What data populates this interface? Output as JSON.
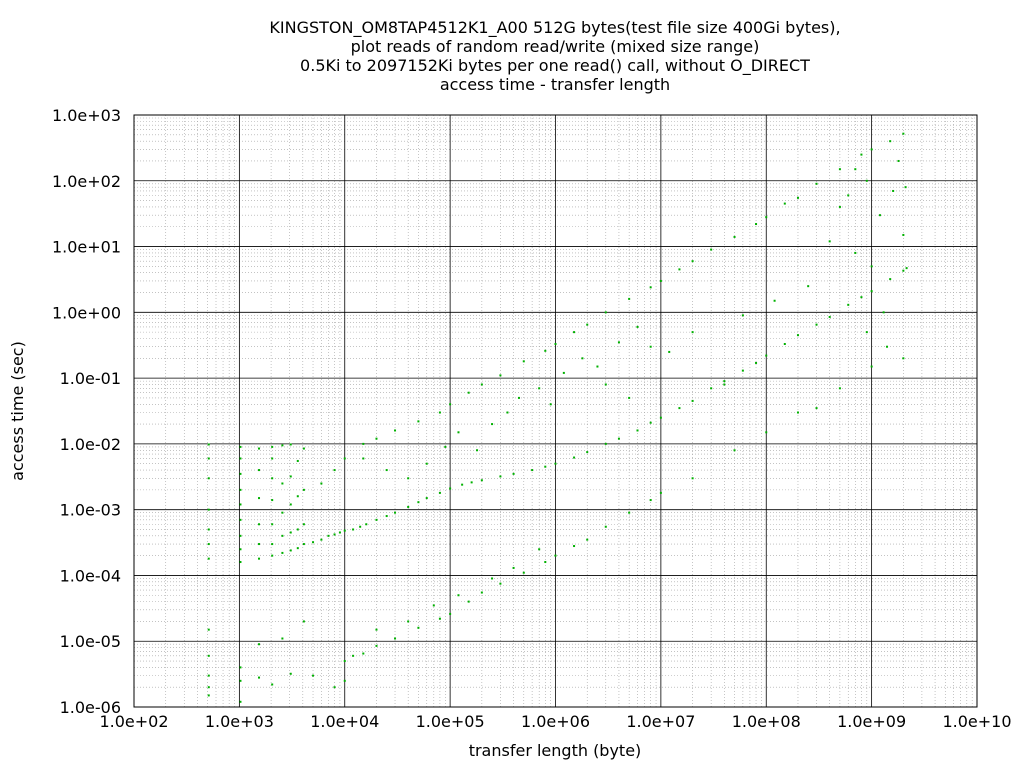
{
  "chart_data": {
    "type": "scatter",
    "title_lines": [
      "KINGSTON_OM8TAP4512K1_A00 512G bytes(test file size 400Gi bytes),",
      "plot reads of random read/write (mixed size range)",
      "0.5Ki to 2097152Ki bytes per one read() call, without O_DIRECT",
      "access time - transfer length"
    ],
    "xlabel": "transfer length (byte)",
    "ylabel": "access time (sec)",
    "xscale": "log",
    "yscale": "log",
    "xlim": [
      100,
      10000000000
    ],
    "ylim": [
      1e-06,
      1000
    ],
    "grid": true,
    "x_tick_labels": [
      "1.0e+02",
      "1.0e+03",
      "1.0e+04",
      "1.0e+05",
      "1.0e+06",
      "1.0e+07",
      "1.0e+08",
      "1.0e+09",
      "1.0e+10"
    ],
    "y_tick_labels": [
      "1.0e-06",
      "1.0e-05",
      "1.0e-04",
      "1.0e-03",
      "1.0e-02",
      "1.0e-01",
      "1.0e+00",
      "1.0e+01",
      "1.0e+02",
      "1.0e+03"
    ],
    "point_color": "#00b000",
    "series": [
      {
        "points": [
          [
            512,
            0.00018
          ],
          [
            512,
            0.0003
          ],
          [
            512,
            0.0005
          ],
          [
            512,
            0.001
          ],
          [
            512,
            0.003
          ],
          [
            512,
            0.006
          ],
          [
            512,
            0.0098
          ],
          [
            512,
            3e-06
          ],
          [
            512,
            2e-06
          ],
          [
            512,
            1.5e-06
          ],
          [
            512,
            6e-06
          ],
          [
            512,
            1.5e-05
          ],
          [
            1024,
            0.00016
          ],
          [
            1024,
            0.00025
          ],
          [
            1024,
            0.0004
          ],
          [
            1024,
            0.0007
          ],
          [
            1024,
            0.0012
          ],
          [
            1024,
            0.002
          ],
          [
            1024,
            0.0035
          ],
          [
            1024,
            0.006
          ],
          [
            1024,
            0.009
          ],
          [
            1024,
            4e-06
          ],
          [
            1024,
            2.5e-06
          ],
          [
            1024,
            1.2e-06
          ],
          [
            1536,
            0.00018
          ],
          [
            1536,
            0.0003
          ],
          [
            1536,
            0.0006
          ],
          [
            1536,
            0.0015
          ],
          [
            1536,
            0.004
          ],
          [
            1536,
            0.0085
          ],
          [
            1536,
            2.8e-06
          ],
          [
            1536,
            9e-06
          ],
          [
            2048,
            0.0002
          ],
          [
            2048,
            0.0003
          ],
          [
            2048,
            0.0006
          ],
          [
            2048,
            0.0014
          ],
          [
            2048,
            0.003
          ],
          [
            2048,
            0.006
          ],
          [
            2048,
            0.009
          ],
          [
            2048,
            2.2e-06
          ],
          [
            2560,
            0.00022
          ],
          [
            2560,
            0.0004
          ],
          [
            2560,
            0.0009
          ],
          [
            2560,
            0.0025
          ],
          [
            2560,
            0.0095
          ],
          [
            2560,
            1.1e-05
          ],
          [
            3072,
            0.00024
          ],
          [
            3072,
            0.00045
          ],
          [
            3072,
            0.0012
          ],
          [
            3072,
            0.0032
          ],
          [
            3072,
            0.0098
          ],
          [
            3072,
            3.2e-06
          ],
          [
            3584,
            0.00026
          ],
          [
            3584,
            0.0005
          ],
          [
            3584,
            0.0016
          ],
          [
            3584,
            0.0055
          ],
          [
            4096,
            0.0003
          ],
          [
            4096,
            0.0006
          ],
          [
            4096,
            0.002
          ],
          [
            4096,
            0.0085
          ],
          [
            4096,
            2e-05
          ],
          [
            5000,
            0.00032
          ],
          [
            6000,
            0.00035
          ],
          [
            7000,
            0.0004
          ],
          [
            8000,
            0.00042
          ],
          [
            9000,
            0.00045
          ],
          [
            10000,
            0.00048
          ],
          [
            12000,
            0.0005
          ],
          [
            14000,
            0.00055
          ],
          [
            16000,
            0.0006
          ],
          [
            20000,
            0.0007
          ],
          [
            25000,
            0.0008
          ],
          [
            30000,
            0.0009
          ],
          [
            40000,
            0.0011
          ],
          [
            50000,
            0.0013
          ],
          [
            60000,
            0.0015
          ],
          [
            80000,
            0.0018
          ],
          [
            100000,
            0.0021
          ],
          [
            130000,
            0.0024
          ],
          [
            160000,
            0.0026
          ],
          [
            200000,
            0.0028
          ],
          [
            300000,
            0.0032
          ],
          [
            400000,
            0.0035
          ],
          [
            600000,
            0.004
          ],
          [
            800000,
            0.0045
          ],
          [
            1000000,
            0.005
          ],
          [
            1500000,
            0.0062
          ],
          [
            2000000,
            0.0075
          ],
          [
            3000000,
            0.01
          ],
          [
            4000000,
            0.012
          ],
          [
            6000000,
            0.016
          ],
          [
            8000000,
            0.021
          ],
          [
            10000000,
            0.025
          ],
          [
            15000000,
            0.035
          ],
          [
            20000000,
            0.045
          ],
          [
            30000000,
            0.07
          ],
          [
            40000000,
            0.09
          ],
          [
            60000000,
            0.13
          ],
          [
            80000000,
            0.17
          ],
          [
            100000000,
            0.22
          ],
          [
            150000000,
            0.33
          ],
          [
            200000000,
            0.45
          ],
          [
            300000000,
            0.65
          ],
          [
            400000000,
            0.85
          ],
          [
            600000000,
            1.3
          ],
          [
            800000000,
            1.7
          ],
          [
            1000000000,
            2.1
          ],
          [
            1500000000,
            3.2
          ],
          [
            2000000000,
            4.3
          ],
          [
            2147483648,
            4.7
          ],
          [
            6000,
            0.0025
          ],
          [
            8000,
            0.004
          ],
          [
            10000,
            0.006
          ],
          [
            15000,
            0.01
          ],
          [
            20000,
            0.012
          ],
          [
            30000,
            0.016
          ],
          [
            50000,
            0.022
          ],
          [
            80000,
            0.03
          ],
          [
            100000,
            0.04
          ],
          [
            150000,
            0.06
          ],
          [
            200000,
            0.08
          ],
          [
            300000,
            0.11
          ],
          [
            500000,
            0.18
          ],
          [
            800000,
            0.26
          ],
          [
            1000000,
            0.33
          ],
          [
            1500000,
            0.5
          ],
          [
            2000000,
            0.65
          ],
          [
            3000000,
            1.0
          ],
          [
            5000000,
            1.6
          ],
          [
            8000000,
            2.4
          ],
          [
            10000000,
            3.0
          ],
          [
            15000000,
            4.5
          ],
          [
            20000000,
            6.0
          ],
          [
            30000000,
            9.0
          ],
          [
            50000000,
            14.0
          ],
          [
            80000000,
            22.0
          ],
          [
            100000000,
            28.0
          ],
          [
            150000000,
            45.0
          ],
          [
            200000000,
            55.0
          ],
          [
            300000000,
            90.0
          ],
          [
            500000000,
            150.0
          ],
          [
            800000000,
            250.0
          ],
          [
            1000000000,
            300.0
          ],
          [
            1500000000,
            400.0
          ],
          [
            2000000000,
            520.0
          ],
          [
            8000,
            2e-06
          ],
          [
            10000,
            2.5e-06
          ],
          [
            10000,
            5e-06
          ],
          [
            12000,
            6e-06
          ],
          [
            15000,
            6.5e-06
          ],
          [
            20000,
            8.5e-06
          ],
          [
            30000,
            1.1e-05
          ],
          [
            50000,
            1.6e-05
          ],
          [
            80000,
            2.2e-05
          ],
          [
            100000,
            2.6e-05
          ],
          [
            150000,
            4e-05
          ],
          [
            200000,
            5.5e-05
          ],
          [
            300000,
            7.5e-05
          ],
          [
            500000,
            0.00011
          ],
          [
            800000,
            0.00016
          ],
          [
            1000000,
            0.0002
          ],
          [
            1500000,
            0.00028
          ],
          [
            2000000,
            0.00035
          ],
          [
            3000000,
            0.00055
          ],
          [
            5000000,
            0.0009
          ],
          [
            8000000,
            0.0014
          ],
          [
            10000000,
            0.0018
          ],
          [
            20000000,
            0.003
          ],
          [
            50000000,
            0.008
          ],
          [
            100000000,
            0.015
          ],
          [
            200000000,
            0.03
          ],
          [
            500000000,
            0.07
          ],
          [
            1000000000,
            0.15
          ],
          [
            3000000,
            0.08
          ],
          [
            5000000,
            0.05
          ],
          [
            8000000,
            0.3
          ],
          [
            12000000,
            0.25
          ],
          [
            20000000,
            0.5
          ],
          [
            40000000,
            0.08
          ],
          [
            60000000,
            0.9
          ],
          [
            120000000,
            1.5
          ],
          [
            250000000,
            2.5
          ],
          [
            300000000,
            0.035
          ],
          [
            400000000,
            12.0
          ],
          [
            600000000,
            60.0
          ],
          [
            700000000,
            8.0
          ],
          [
            900000000,
            100.0
          ],
          [
            1200000000,
            30.0
          ],
          [
            1300000000,
            1.0
          ],
          [
            1600000000,
            70.0
          ],
          [
            1800000000,
            200.0
          ],
          [
            2000000000,
            15.0
          ],
          [
            2000000000,
            0.2
          ],
          [
            2100000000,
            80.0
          ],
          [
            1400000000,
            0.3
          ],
          [
            900000000,
            0.5
          ],
          [
            1000000000,
            5.0
          ],
          [
            500000000,
            40.0
          ],
          [
            700000000,
            150.0
          ],
          [
            15000,
            0.006
          ],
          [
            25000,
            0.004
          ],
          [
            40000,
            0.003
          ],
          [
            60000,
            0.005
          ],
          [
            90000,
            0.009
          ],
          [
            120000,
            0.015
          ],
          [
            180000,
            0.008
          ],
          [
            250000,
            0.02
          ],
          [
            350000,
            0.03
          ],
          [
            450000,
            0.05
          ],
          [
            700000,
            0.07
          ],
          [
            900000,
            0.04
          ],
          [
            1200000,
            0.12
          ],
          [
            1800000,
            0.2
          ],
          [
            2500000,
            0.15
          ],
          [
            4000000,
            0.35
          ],
          [
            6000000,
            0.6
          ],
          [
            5000,
            3e-06
          ],
          [
            20000,
            1.5e-05
          ],
          [
            40000,
            2e-05
          ],
          [
            70000,
            3.5e-05
          ],
          [
            120000,
            5e-05
          ],
          [
            250000,
            9e-05
          ],
          [
            400000,
            0.00013
          ],
          [
            700000,
            0.00025
          ]
        ]
      }
    ]
  }
}
